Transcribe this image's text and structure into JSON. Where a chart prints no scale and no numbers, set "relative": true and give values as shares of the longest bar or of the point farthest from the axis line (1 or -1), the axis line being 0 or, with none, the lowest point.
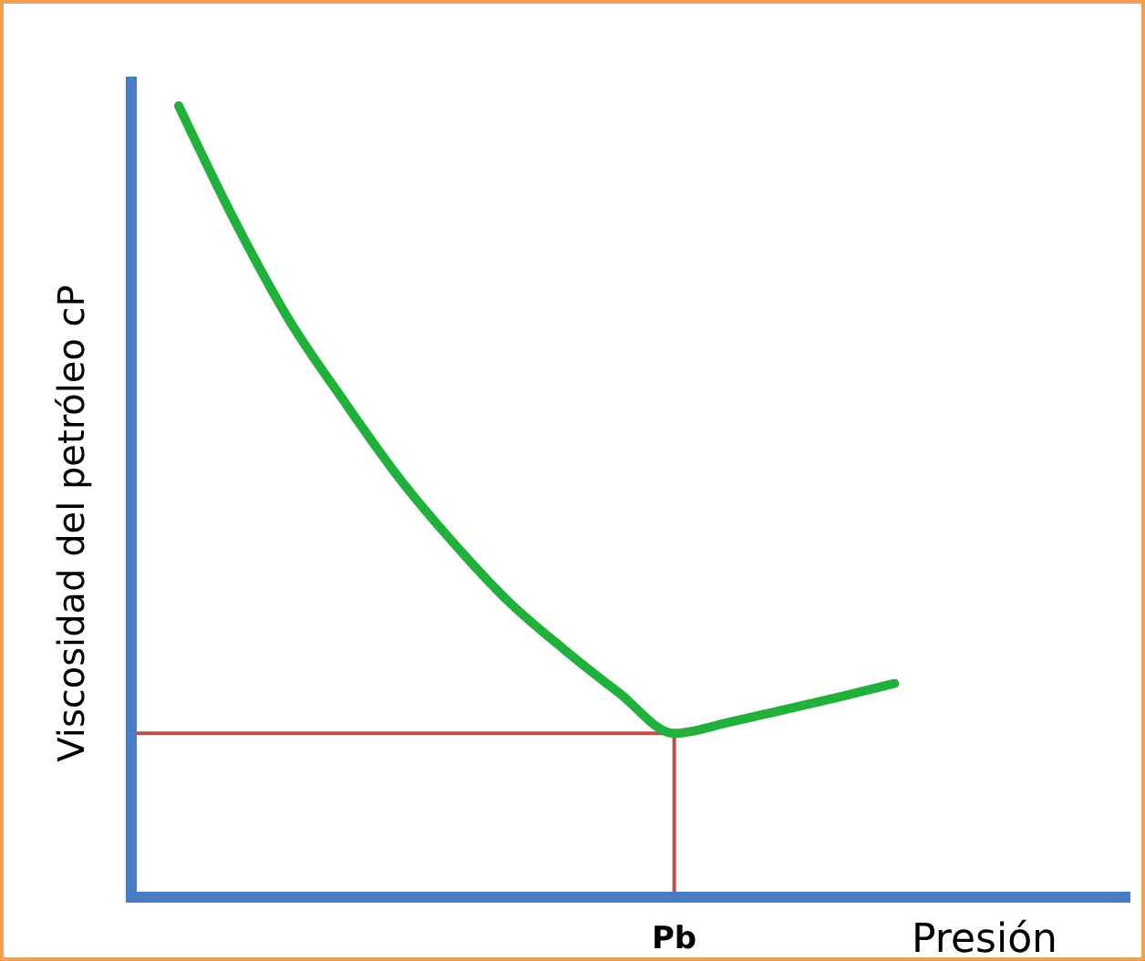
{
  "chart_data": {
    "type": "line",
    "relative": true,
    "xlabel": "Presión",
    "ylabel": "Viscosidad del petróleo cP",
    "categories": [
      null,
      null,
      null,
      null,
      null,
      null,
      null,
      null,
      null,
      null,
      null,
      null,
      null,
      null
    ],
    "series": [
      {
        "color": "#22b03c",
        "values": [
          1,
          0.857,
          0.73,
          0.627,
          0.53,
          0.447,
          0.373,
          0.313,
          0.258,
          0.207,
          0.221,
          0.237,
          0.253,
          0.27
        ]
      }
    ],
    "ref_lines": [
      {
        "axis": "y",
        "value": 0.207,
        "color": "#b5504d"
      },
      {
        "axis": "x",
        "value": "Pb",
        "color": "#b5504d"
      }
    ]
  }
}
